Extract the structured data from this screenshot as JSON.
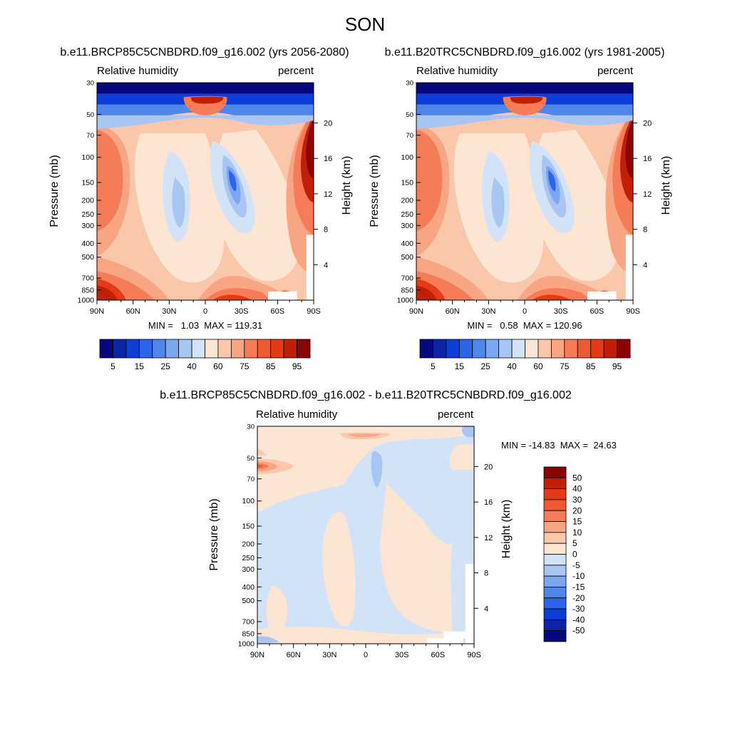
{
  "page_title": "SON",
  "panels": [
    {
      "title": "b.e11.BRCP85C5CNBDRD.f09_g16.002 (yrs 2056-2080)",
      "left_label": "Relative humidity",
      "right_label": "percent",
      "min_max": "MIN =   1.03  MAX = 119.31"
    },
    {
      "title": "b.e11.B20TRC5CNBDRD.f09_g16.002 (yrs 1981-2005)",
      "left_label": "Relative humidity",
      "right_label": "percent",
      "min_max": "MIN =   0.58  MAX = 120.96"
    },
    {
      "title": "b.e11.BRCP85C5CNBDRD.f09_g16.002 - b.e11.B20TRC5CNBDRD.f09_g16.002",
      "left_label": "Relative humidity",
      "right_label": "percent",
      "min_max": "MIN = -14.83  MAX =  24.63"
    }
  ],
  "axes": {
    "ylabel": "Pressure (mb)",
    "y2label": "Height (km)",
    "pressure_ticks": [
      "30",
      "50",
      "70",
      "100",
      "150",
      "200",
      "250",
      "300",
      "400",
      "500",
      "700",
      "850",
      "1000"
    ],
    "pressure_values": [
      30,
      50,
      70,
      100,
      150,
      200,
      250,
      300,
      400,
      500,
      700,
      850,
      1000
    ],
    "height_ticks": [
      "20",
      "16",
      "12",
      "8",
      "4"
    ],
    "height_values": [
      20,
      16,
      12,
      8,
      4
    ],
    "lat_ticks": [
      "90N",
      "60N",
      "30N",
      "0",
      "30S",
      "60S",
      "90S"
    ]
  },
  "colorbars": {
    "main": {
      "labels": [
        "5",
        "15",
        "25",
        "40",
        "60",
        "75",
        "85",
        "95"
      ],
      "colors": [
        "#08087e",
        "#0a26a6",
        "#0e3ed6",
        "#2a64e8",
        "#4f86ec",
        "#7ba6f0",
        "#a9c6f3",
        "#d3e3f7",
        "#fde5d3",
        "#fbc7ab",
        "#f8a583",
        "#f57c56",
        "#f05a30",
        "#e33b16",
        "#c02008",
        "#8a0404"
      ]
    },
    "diff": {
      "labels": [
        "50",
        "40",
        "30",
        "20",
        "15",
        "10",
        "5",
        "0",
        "-5",
        "-10",
        "-15",
        "-20",
        "-30",
        "-40",
        "-50"
      ],
      "colors": [
        "#8a0404",
        "#c02008",
        "#e33b16",
        "#f05a30",
        "#f57c56",
        "#f8a583",
        "#fbc7ab",
        "#fde5d3",
        "#d3e3f7",
        "#a9c6f3",
        "#7ba6f0",
        "#4f86ec",
        "#2a64e8",
        "#0e3ed6",
        "#0a26a6",
        "#08087e"
      ]
    }
  },
  "chart_data": [
    {
      "type": "heatmap",
      "title": "b.e11.BRCP85C5CNBDRD.f09_g16.002 (yrs 2056-2080)",
      "variable": "Relative humidity",
      "units": "percent",
      "x": [
        "90N",
        "60N",
        "30N",
        "0",
        "30S",
        "60S",
        "90S"
      ],
      "y_pressure_mb": [
        30,
        50,
        70,
        100,
        150,
        200,
        250,
        300,
        400,
        500,
        700,
        850,
        1000
      ],
      "xlabel": "",
      "ylabel": "Pressure (mb)",
      "y2label": "Height (km)",
      "min": 1.03,
      "max": 119.31,
      "contour_levels": [
        5,
        10,
        15,
        20,
        25,
        30,
        40,
        50,
        60,
        70,
        75,
        80,
        85,
        90,
        95
      ]
    },
    {
      "type": "heatmap",
      "title": "b.e11.B20TRC5CNBDRD.f09_g16.002 (yrs 1981-2005)",
      "variable": "Relative humidity",
      "units": "percent",
      "x": [
        "90N",
        "60N",
        "30N",
        "0",
        "30S",
        "60S",
        "90S"
      ],
      "y_pressure_mb": [
        30,
        50,
        70,
        100,
        150,
        200,
        250,
        300,
        400,
        500,
        700,
        850,
        1000
      ],
      "xlabel": "",
      "ylabel": "Pressure (mb)",
      "y2label": "Height (km)",
      "min": 0.58,
      "max": 120.96,
      "contour_levels": [
        5,
        10,
        15,
        20,
        25,
        30,
        40,
        50,
        60,
        70,
        75,
        80,
        85,
        90,
        95
      ]
    },
    {
      "type": "heatmap",
      "title": "b.e11.BRCP85C5CNBDRD.f09_g16.002 - b.e11.B20TRC5CNBDRD.f09_g16.002",
      "variable": "Relative humidity",
      "units": "percent",
      "x": [
        "90N",
        "60N",
        "30N",
        "0",
        "30S",
        "60S",
        "90S"
      ],
      "y_pressure_mb": [
        30,
        50,
        70,
        100,
        150,
        200,
        250,
        300,
        400,
        500,
        700,
        850,
        1000
      ],
      "xlabel": "",
      "ylabel": "Pressure (mb)",
      "y2label": "Height (km)",
      "min": -14.83,
      "max": 24.63,
      "contour_levels": [
        -50,
        -40,
        -30,
        -20,
        -15,
        -10,
        -5,
        0,
        5,
        10,
        15,
        20,
        30,
        40,
        50
      ]
    }
  ]
}
